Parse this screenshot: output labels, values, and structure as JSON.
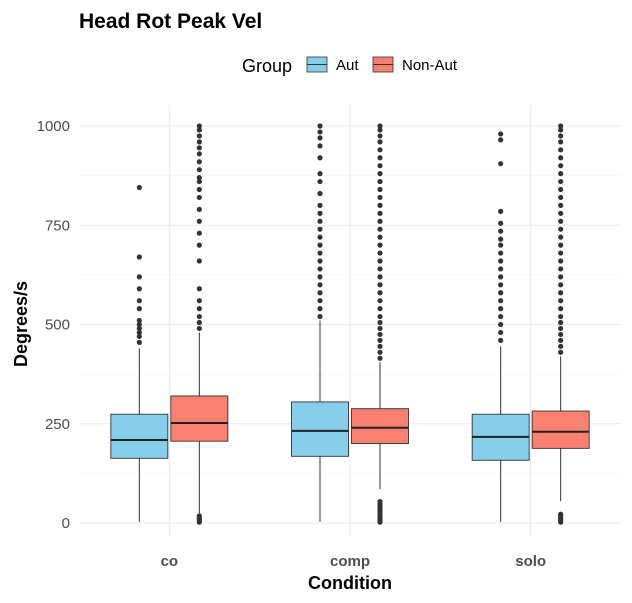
{
  "chart_data": {
    "type": "boxplot",
    "title": "Head Rot Peak Vel",
    "xlabel": "Condition",
    "ylabel": "Degrees/s",
    "ylim": [
      0,
      1000
    ],
    "yticks": [
      0,
      250,
      500,
      750,
      1000
    ],
    "categories": [
      "co",
      "comp",
      "solo"
    ],
    "legend": {
      "title": "Group",
      "position": "top"
    },
    "grid": true,
    "series": [
      {
        "name": "Aut",
        "color": "#87CEEB",
        "boxes": [
          {
            "category": "co",
            "min": 3,
            "q1": 163,
            "median": 209,
            "q3": 274,
            "max": 440,
            "outliers": [
              455,
              470,
              480,
              490,
              500,
              510,
              540,
              560,
              590,
              620,
              670,
              845
            ]
          },
          {
            "category": "comp",
            "min": 3,
            "q1": 168,
            "median": 232,
            "q3": 305,
            "max": 510,
            "outliers": [
              520,
              540,
              560,
              580,
              600,
              620,
              640,
              660,
              680,
              700,
              720,
              740,
              760,
              780,
              800,
              830,
              860,
              880,
              920,
              950,
              970,
              985,
              1000
            ]
          },
          {
            "category": "solo",
            "min": 3,
            "q1": 158,
            "median": 217,
            "q3": 274,
            "max": 445,
            "outliers": [
              460,
              480,
              500,
              520,
              540,
              560,
              580,
              600,
              620,
              640,
              660,
              680,
              700,
              715,
              735,
              755,
              785,
              905,
              965,
              980
            ]
          }
        ]
      },
      {
        "name": "Non-Aut",
        "color": "#FA8072",
        "boxes": [
          {
            "category": "co",
            "min": 25,
            "q1": 206,
            "median": 252,
            "q3": 320,
            "max": 480,
            "outliers": [
              2,
              6,
              10,
              14,
              18,
              490,
              505,
              520,
              540,
              560,
              590,
              660,
              700,
              730,
              760,
              790,
              820,
              840,
              860,
              870,
              890,
              910,
              930,
              945,
              960,
              975,
              990,
              1000
            ]
          },
          {
            "category": "comp",
            "min": 85,
            "q1": 200,
            "median": 240,
            "q3": 288,
            "max": 405,
            "outliers": [
              2,
              6,
              10,
              14,
              18,
              24,
              30,
              36,
              42,
              48,
              54,
              415,
              430,
              445,
              460,
              475,
              490,
              505,
              520,
              540,
              560,
              580,
              600,
              620,
              640,
              660,
              680,
              700,
              720,
              740,
              760,
              780,
              800,
              820,
              840,
              860,
              880,
              900,
              920,
              940,
              960,
              975,
              990,
              1000
            ]
          },
          {
            "category": "solo",
            "min": 55,
            "q1": 188,
            "median": 230,
            "q3": 282,
            "max": 420,
            "outliers": [
              2,
              6,
              10,
              14,
              18,
              22,
              430,
              445,
              460,
              475,
              490,
              505,
              520,
              540,
              560,
              580,
              600,
              620,
              640,
              660,
              680,
              700,
              720,
              740,
              760,
              780,
              800,
              820,
              840,
              860,
              880,
              900,
              920,
              940,
              960,
              975,
              990,
              1000
            ]
          }
        ]
      }
    ]
  }
}
